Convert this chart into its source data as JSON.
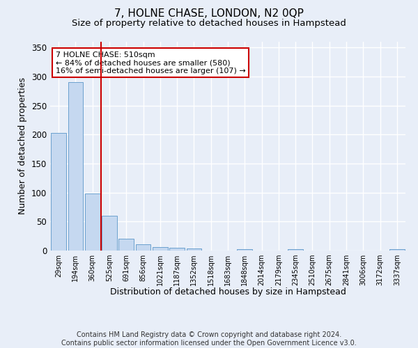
{
  "title": "7, HOLNE CHASE, LONDON, N2 0QP",
  "subtitle": "Size of property relative to detached houses in Hampstead",
  "xlabel": "Distribution of detached houses by size in Hampstead",
  "ylabel": "Number of detached properties",
  "categories": [
    "29sqm",
    "194sqm",
    "360sqm",
    "525sqm",
    "691sqm",
    "856sqm",
    "1021sqm",
    "1187sqm",
    "1352sqm",
    "1518sqm",
    "1683sqm",
    "1848sqm",
    "2014sqm",
    "2179sqm",
    "2345sqm",
    "2510sqm",
    "2675sqm",
    "2841sqm",
    "3006sqm",
    "3172sqm",
    "3337sqm"
  ],
  "values": [
    203,
    290,
    99,
    60,
    21,
    11,
    6,
    5,
    4,
    0,
    0,
    2,
    0,
    0,
    3,
    0,
    0,
    0,
    0,
    0,
    2
  ],
  "bar_color": "#c5d8f0",
  "bar_edge_color": "#5a96c8",
  "vline_color": "#cc0000",
  "annotation_text": "7 HOLNE CHASE: 510sqm\n← 84% of detached houses are smaller (580)\n16% of semi-detached houses are larger (107) →",
  "annotation_box_color": "#ffffff",
  "annotation_box_edge": "#cc0000",
  "ylim": [
    0,
    360
  ],
  "yticks": [
    0,
    50,
    100,
    150,
    200,
    250,
    300,
    350
  ],
  "footnote": "Contains HM Land Registry data © Crown copyright and database right 2024.\nContains public sector information licensed under the Open Government Licence v3.0.",
  "bg_color": "#e8eef8",
  "plot_bg_color": "#e8eef8",
  "grid_color": "#ffffff",
  "title_fontsize": 11,
  "subtitle_fontsize": 9.5,
  "xlabel_fontsize": 9,
  "ylabel_fontsize": 9,
  "footnote_fontsize": 7
}
